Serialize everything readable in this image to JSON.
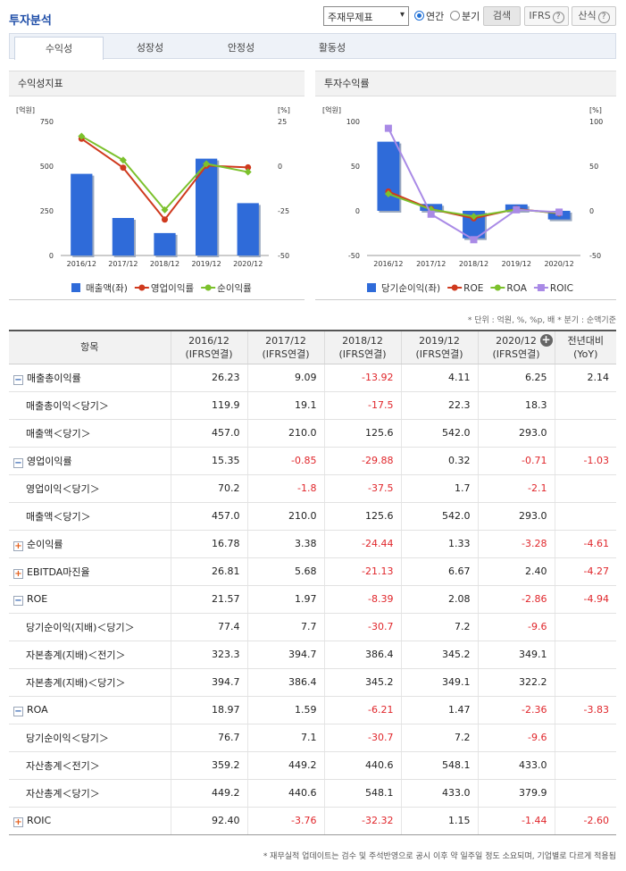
{
  "header": {
    "title": "투자분석",
    "select_value": "주재무제표",
    "radio_annual": "연간",
    "radio_quarter": "분기",
    "search_label": "검색",
    "ifrs_label": "IFRS",
    "calc_label": "산식",
    "help_glyph": "?"
  },
  "tabs": [
    "수익성",
    "성장성",
    "안정성",
    "활동성"
  ],
  "panels": {
    "left_title": "수익성지표",
    "right_title": "투자수익률"
  },
  "chart_data": [
    {
      "type": "bar",
      "title": "수익성지표",
      "categories": [
        "2016/12",
        "2017/12",
        "2018/12",
        "2019/12",
        "2020/12"
      ],
      "left_unit": "[억원]",
      "right_unit": "[%]",
      "left_ticks": [
        "750",
        "500",
        "250",
        "0"
      ],
      "right_ticks": [
        "25",
        "0",
        "-25",
        "-50"
      ],
      "ylim_left": [
        0,
        750
      ],
      "ylim_right": [
        -50,
        25
      ],
      "series": [
        {
          "name": "매출액(좌)",
          "kind": "bar",
          "axis": "left",
          "color": "#2f6bd9",
          "values": [
            457.0,
            210.0,
            125.6,
            542.0,
            293.0
          ]
        },
        {
          "name": "영업이익률",
          "kind": "line",
          "axis": "right",
          "color": "#cf3a1e",
          "values": [
            15.35,
            -0.85,
            -29.88,
            0.32,
            -0.71
          ]
        },
        {
          "name": "순이익률",
          "kind": "line",
          "axis": "right",
          "color": "#7cc12c",
          "values": [
            16.78,
            3.38,
            -24.44,
            1.33,
            -3.28
          ]
        }
      ]
    },
    {
      "type": "bar",
      "title": "투자수익률",
      "categories": [
        "2016/12",
        "2017/12",
        "2018/12",
        "2019/12",
        "2020/12"
      ],
      "left_unit": "[억원]",
      "right_unit": "[%]",
      "left_ticks": [
        "100",
        "50",
        "0",
        "-50"
      ],
      "right_ticks": [
        "100",
        "50",
        "0",
        "-50"
      ],
      "ylim_left": [
        -50,
        100
      ],
      "ylim_right": [
        -50,
        100
      ],
      "series": [
        {
          "name": "당기순이익(좌)",
          "kind": "bar",
          "axis": "left",
          "color": "#2f6bd9",
          "values": [
            77.4,
            7.7,
            -30.7,
            7.2,
            -9.6
          ]
        },
        {
          "name": "ROE",
          "kind": "line",
          "axis": "right",
          "color": "#cf3a1e",
          "values": [
            21.57,
            1.97,
            -8.39,
            2.08,
            -2.86
          ]
        },
        {
          "name": "ROA",
          "kind": "line",
          "axis": "right",
          "color": "#7cc12c",
          "values": [
            18.97,
            1.59,
            -6.21,
            1.47,
            -2.36
          ]
        },
        {
          "name": "ROIC",
          "kind": "line",
          "axis": "right",
          "color": "#a98ae6",
          "values": [
            92.4,
            -3.76,
            -32.32,
            1.15,
            -1.44
          ]
        }
      ]
    }
  ],
  "unit_note": "* 단위 : 억원, %, %p, 배   * 분기 : 순액기준",
  "table": {
    "headers": [
      {
        "l1": "항목",
        "l2": ""
      },
      {
        "l1": "2016/12",
        "l2": "(IFRS연결)"
      },
      {
        "l1": "2017/12",
        "l2": "(IFRS연결)"
      },
      {
        "l1": "2018/12",
        "l2": "(IFRS연결)"
      },
      {
        "l1": "2019/12",
        "l2": "(IFRS연결)"
      },
      {
        "l1": "2020/12",
        "l2": "(IFRS연결)"
      },
      {
        "l1": "전년대비",
        "l2": "(YoY)"
      }
    ],
    "rows": [
      {
        "label": "매출총이익률",
        "toggle": "minus",
        "values": [
          "26.23",
          "9.09",
          "-13.92",
          "4.11",
          "6.25",
          "2.14"
        ]
      },
      {
        "label": "매출총이익＜당기＞",
        "sub": true,
        "values": [
          "119.9",
          "19.1",
          "-17.5",
          "22.3",
          "18.3",
          ""
        ]
      },
      {
        "label": "매출액＜당기＞",
        "sub": true,
        "values": [
          "457.0",
          "210.0",
          "125.6",
          "542.0",
          "293.0",
          ""
        ]
      },
      {
        "label": "영업이익률",
        "toggle": "minus",
        "values": [
          "15.35",
          "-0.85",
          "-29.88",
          "0.32",
          "-0.71",
          "-1.03"
        ]
      },
      {
        "label": "영업이익＜당기＞",
        "sub": true,
        "values": [
          "70.2",
          "-1.8",
          "-37.5",
          "1.7",
          "-2.1",
          ""
        ]
      },
      {
        "label": "매출액＜당기＞",
        "sub": true,
        "values": [
          "457.0",
          "210.0",
          "125.6",
          "542.0",
          "293.0",
          ""
        ]
      },
      {
        "label": "순이익률",
        "toggle": "plus",
        "values": [
          "16.78",
          "3.38",
          "-24.44",
          "1.33",
          "-3.28",
          "-4.61"
        ]
      },
      {
        "label": "EBITDA마진율",
        "toggle": "plus",
        "values": [
          "26.81",
          "5.68",
          "-21.13",
          "6.67",
          "2.40",
          "-4.27"
        ]
      },
      {
        "label": "ROE",
        "toggle": "minus",
        "values": [
          "21.57",
          "1.97",
          "-8.39",
          "2.08",
          "-2.86",
          "-4.94"
        ]
      },
      {
        "label": "당기순이익(지배)＜당기＞",
        "sub": true,
        "values": [
          "77.4",
          "7.7",
          "-30.7",
          "7.2",
          "-9.6",
          ""
        ]
      },
      {
        "label": "자본총계(지배)＜전기＞",
        "sub": true,
        "values": [
          "323.3",
          "394.7",
          "386.4",
          "345.2",
          "349.1",
          ""
        ]
      },
      {
        "label": "자본총계(지배)＜당기＞",
        "sub": true,
        "values": [
          "394.7",
          "386.4",
          "345.2",
          "349.1",
          "322.2",
          ""
        ]
      },
      {
        "label": "ROA",
        "toggle": "minus",
        "values": [
          "18.97",
          "1.59",
          "-6.21",
          "1.47",
          "-2.36",
          "-3.83"
        ]
      },
      {
        "label": "당기순이익＜당기＞",
        "sub": true,
        "values": [
          "76.7",
          "7.1",
          "-30.7",
          "7.2",
          "-9.6",
          ""
        ]
      },
      {
        "label": "자산총계＜전기＞",
        "sub": true,
        "values": [
          "359.2",
          "449.2",
          "440.6",
          "548.1",
          "433.0",
          ""
        ]
      },
      {
        "label": "자산총계＜당기＞",
        "sub": true,
        "values": [
          "449.2",
          "440.6",
          "548.1",
          "433.0",
          "379.9",
          ""
        ]
      },
      {
        "label": "ROIC",
        "toggle": "plus",
        "values": [
          "92.40",
          "-3.76",
          "-32.32",
          "1.15",
          "-1.44",
          "-2.60"
        ]
      }
    ]
  },
  "footnote": "* 재무실적 업데이트는 검수 및 주석반영으로 공시 이후 약 일주일 정도 소요되며, 기업별로 다르게 적용됨"
}
